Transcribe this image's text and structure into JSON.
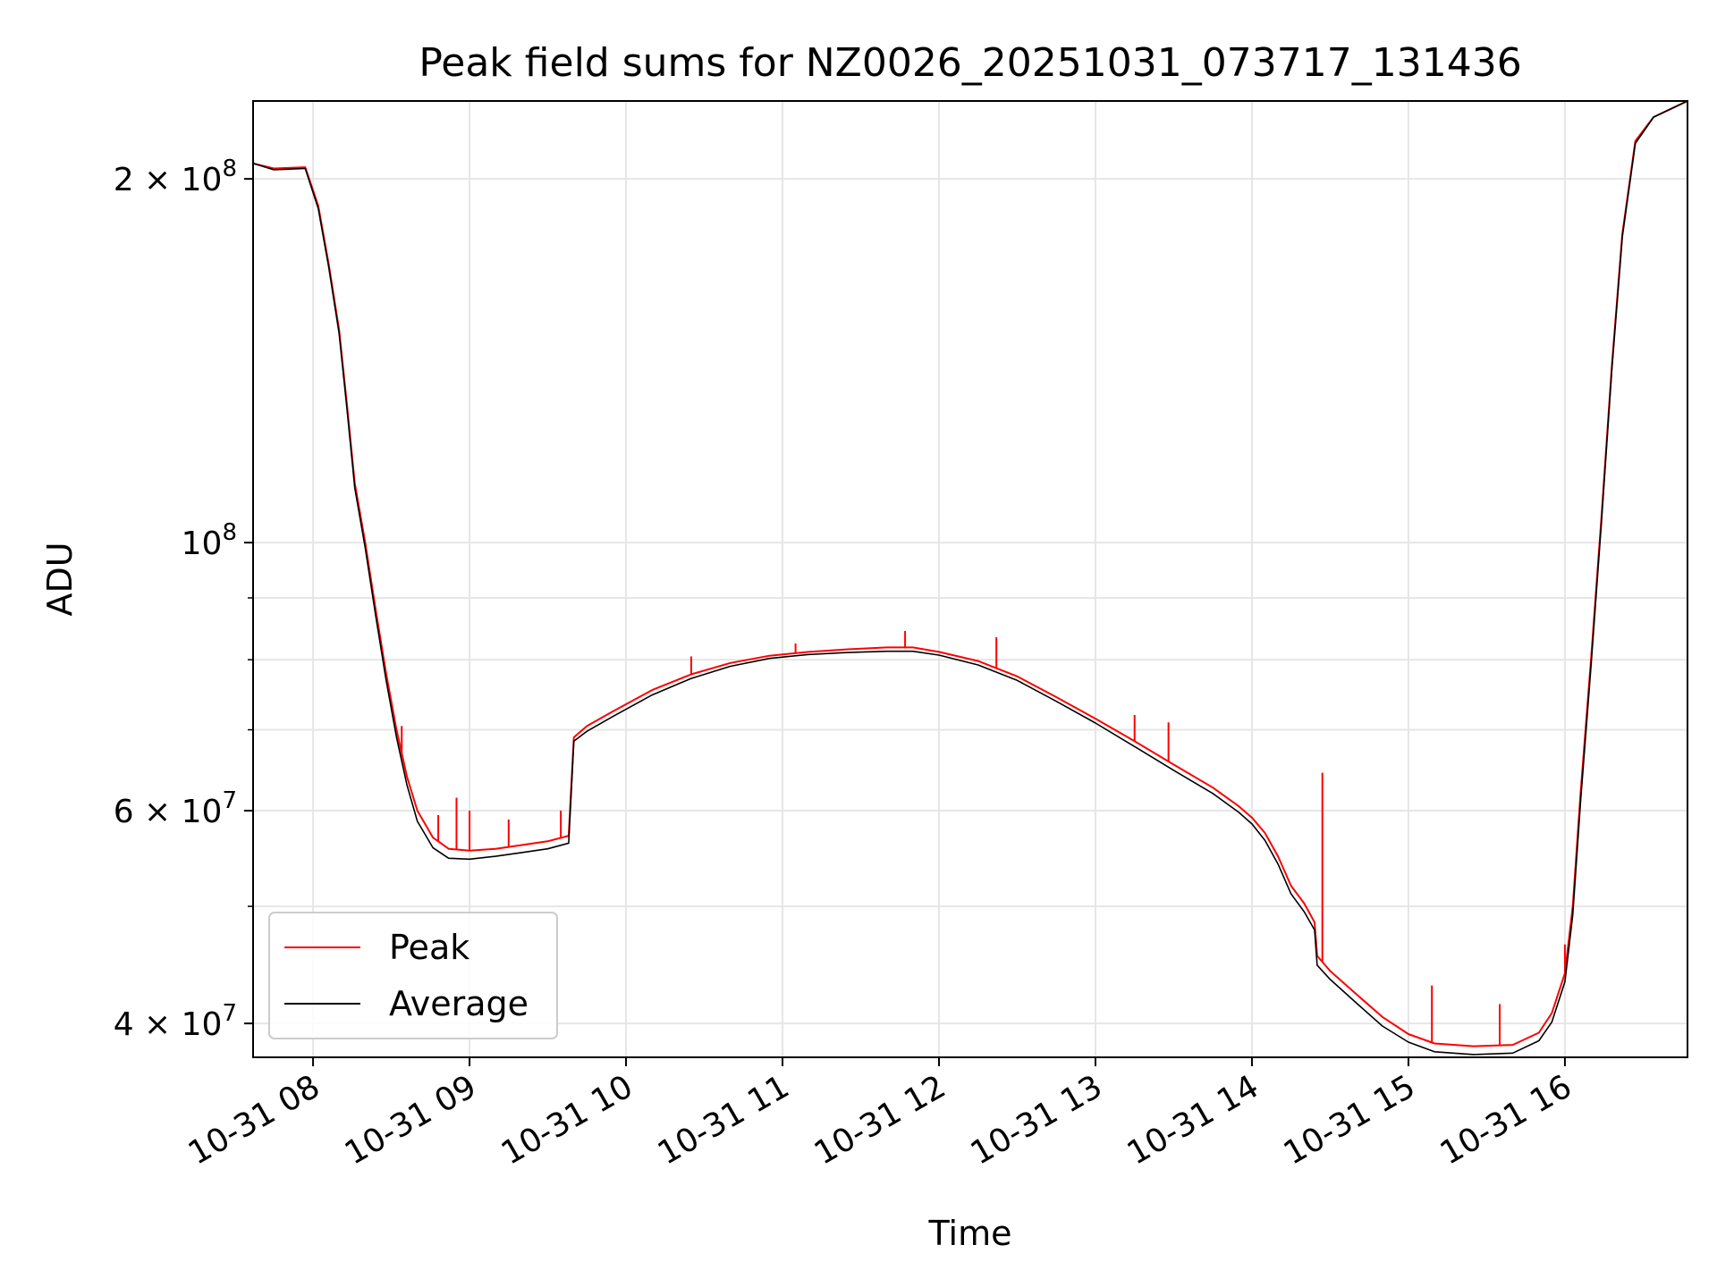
{
  "chart_data": {
    "type": "line",
    "title": "Peak field sums for NZ0026_20251031_073717_131436",
    "xlabel": "Time",
    "ylabel": "ADU",
    "yscale": "log",
    "grid": true,
    "legend_position": "lower-left",
    "xlim": [
      "2025-10-31 07:37",
      "2025-10-31 16:47"
    ],
    "ylim": [
      37500000,
      232000000
    ],
    "x_ticks": [
      {
        "value": "2025-10-31 08:00",
        "label": "10-31 08"
      },
      {
        "value": "2025-10-31 09:00",
        "label": "10-31 09"
      },
      {
        "value": "2025-10-31 10:00",
        "label": "10-31 10"
      },
      {
        "value": "2025-10-31 11:00",
        "label": "10-31 11"
      },
      {
        "value": "2025-10-31 12:00",
        "label": "10-31 12"
      },
      {
        "value": "2025-10-31 13:00",
        "label": "10-31 13"
      },
      {
        "value": "2025-10-31 14:00",
        "label": "10-31 14"
      },
      {
        "value": "2025-10-31 15:00",
        "label": "10-31 15"
      },
      {
        "value": "2025-10-31 16:00",
        "label": "10-31 16"
      }
    ],
    "y_ticks_major": [
      {
        "value": 40000000,
        "mantissa": "4",
        "exponent": "7"
      },
      {
        "value": 60000000,
        "mantissa": "6",
        "exponent": "7"
      },
      {
        "value": 100000000,
        "mantissa": "",
        "exponent": "8"
      },
      {
        "value": 200000000,
        "mantissa": "2",
        "exponent": "8"
      }
    ],
    "y_ticks_minor": [
      50000000,
      70000000,
      80000000,
      90000000
    ],
    "series": [
      {
        "name": "Peak",
        "color": "#ff0000",
        "points": [
          [
            "2025-10-31 07:37",
            206000000
          ],
          [
            "2025-10-31 07:45",
            204000000
          ],
          [
            "2025-10-31 07:57",
            204500000
          ],
          [
            "2025-10-31 08:02",
            190000000
          ],
          [
            "2025-10-31 08:06",
            170000000
          ],
          [
            "2025-10-31 08:10",
            150000000
          ],
          [
            "2025-10-31 08:13",
            130000000
          ],
          [
            "2025-10-31 08:16",
            112000000
          ],
          [
            "2025-10-31 08:20",
            100000000
          ],
          [
            "2025-10-31 08:24",
            88000000
          ],
          [
            "2025-10-31 08:28",
            78000000
          ],
          [
            "2025-10-31 08:32",
            70000000
          ],
          [
            "2025-10-31 08:36",
            64000000
          ],
          [
            "2025-10-31 08:40",
            60000000
          ],
          [
            "2025-10-31 08:46",
            57000000
          ],
          [
            "2025-10-31 08:52",
            55800000
          ],
          [
            "2025-10-31 09:00",
            55600000
          ],
          [
            "2025-10-31 09:10",
            55800000
          ],
          [
            "2025-10-31 09:20",
            56200000
          ],
          [
            "2025-10-31 09:30",
            56600000
          ],
          [
            "2025-10-31 09:38",
            57200000
          ],
          [
            "2025-10-31 09:40",
            69000000
          ],
          [
            "2025-10-31 09:45",
            70500000
          ],
          [
            "2025-10-31 09:55",
            72500000
          ],
          [
            "2025-10-31 10:10",
            75500000
          ],
          [
            "2025-10-31 10:25",
            77800000
          ],
          [
            "2025-10-31 10:40",
            79500000
          ],
          [
            "2025-10-31 10:55",
            80600000
          ],
          [
            "2025-10-31 11:10",
            81200000
          ],
          [
            "2025-10-31 11:25",
            81600000
          ],
          [
            "2025-10-31 11:40",
            81900000
          ],
          [
            "2025-10-31 11:50",
            81900000
          ],
          [
            "2025-10-31 12:00",
            81200000
          ],
          [
            "2025-10-31 12:15",
            79800000
          ],
          [
            "2025-10-31 12:30",
            77500000
          ],
          [
            "2025-10-31 12:45",
            74500000
          ],
          [
            "2025-10-31 13:00",
            71500000
          ],
          [
            "2025-10-31 13:15",
            68500000
          ],
          [
            "2025-10-31 13:30",
            65500000
          ],
          [
            "2025-10-31 13:45",
            62700000
          ],
          [
            "2025-10-31 13:55",
            60500000
          ],
          [
            "2025-10-31 14:00",
            59200000
          ],
          [
            "2025-10-31 14:05",
            57500000
          ],
          [
            "2025-10-31 14:10",
            55000000
          ],
          [
            "2025-10-31 14:15",
            52000000
          ],
          [
            "2025-10-31 14:20",
            50300000
          ],
          [
            "2025-10-31 14:24",
            48500000
          ],
          [
            "2025-10-31 14:25",
            45500000
          ],
          [
            "2025-10-31 14:30",
            44200000
          ],
          [
            "2025-10-31 14:40",
            42300000
          ],
          [
            "2025-10-31 14:50",
            40500000
          ],
          [
            "2025-10-31 15:00",
            39200000
          ],
          [
            "2025-10-31 15:10",
            38500000
          ],
          [
            "2025-10-31 15:25",
            38300000
          ],
          [
            "2025-10-31 15:40",
            38400000
          ],
          [
            "2025-10-31 15:50",
            39300000
          ],
          [
            "2025-10-31 15:55",
            40800000
          ],
          [
            "2025-10-31 16:00",
            44000000
          ],
          [
            "2025-10-31 16:03",
            50000000
          ],
          [
            "2025-10-31 16:06",
            62000000
          ],
          [
            "2025-10-31 16:10",
            80000000
          ],
          [
            "2025-10-31 16:14",
            105000000
          ],
          [
            "2025-10-31 16:18",
            140000000
          ],
          [
            "2025-10-31 16:22",
            180000000
          ],
          [
            "2025-10-31 16:27",
            215000000
          ],
          [
            "2025-10-31 16:34",
            225000000
          ],
          [
            "2025-10-31 16:47",
            232000000
          ]
        ],
        "spikes": [
          [
            "2025-10-31 08:34",
            70500000
          ],
          [
            "2025-10-31 08:48",
            59500000
          ],
          [
            "2025-10-31 08:55",
            61500000
          ],
          [
            "2025-10-31 09:00",
            60000000
          ],
          [
            "2025-10-31 09:15",
            59000000
          ],
          [
            "2025-10-31 09:35",
            60000000
          ],
          [
            "2025-10-31 10:25",
            80500000
          ],
          [
            "2025-10-31 11:05",
            82500000
          ],
          [
            "2025-10-31 11:47",
            84500000
          ],
          [
            "2025-10-31 12:22",
            83500000
          ],
          [
            "2025-10-31 13:15",
            72000000
          ],
          [
            "2025-10-31 13:28",
            71000000
          ],
          [
            "2025-10-31 14:27",
            64500000
          ],
          [
            "2025-10-31 15:09",
            43000000
          ],
          [
            "2025-10-31 15:35",
            41500000
          ],
          [
            "2025-10-31 16:00",
            46500000
          ]
        ]
      },
      {
        "name": "Average",
        "color": "#000000",
        "points": [
          [
            "2025-10-31 07:37",
            206000000
          ],
          [
            "2025-10-31 07:45",
            203500000
          ],
          [
            "2025-10-31 07:57",
            204000000
          ],
          [
            "2025-10-31 08:02",
            189000000
          ],
          [
            "2025-10-31 08:06",
            169000000
          ],
          [
            "2025-10-31 08:10",
            149000000
          ],
          [
            "2025-10-31 08:13",
            129000000
          ],
          [
            "2025-10-31 08:16",
            111000000
          ],
          [
            "2025-10-31 08:20",
            99000000
          ],
          [
            "2025-10-31 08:24",
            87000000
          ],
          [
            "2025-10-31 08:28",
            77000000
          ],
          [
            "2025-10-31 08:32",
            69000000
          ],
          [
            "2025-10-31 08:36",
            63000000
          ],
          [
            "2025-10-31 08:40",
            58800000
          ],
          [
            "2025-10-31 08:46",
            55900000
          ],
          [
            "2025-10-31 08:52",
            54800000
          ],
          [
            "2025-10-31 09:00",
            54700000
          ],
          [
            "2025-10-31 09:10",
            55000000
          ],
          [
            "2025-10-31 09:20",
            55400000
          ],
          [
            "2025-10-31 09:30",
            55800000
          ],
          [
            "2025-10-31 09:38",
            56400000
          ],
          [
            "2025-10-31 09:40",
            68500000
          ],
          [
            "2025-10-31 09:45",
            69800000
          ],
          [
            "2025-10-31 09:55",
            71800000
          ],
          [
            "2025-10-31 10:10",
            74800000
          ],
          [
            "2025-10-31 10:25",
            77200000
          ],
          [
            "2025-10-31 10:40",
            79000000
          ],
          [
            "2025-10-31 10:55",
            80200000
          ],
          [
            "2025-10-31 11:10",
            80800000
          ],
          [
            "2025-10-31 11:25",
            81100000
          ],
          [
            "2025-10-31 11:40",
            81300000
          ],
          [
            "2025-10-31 11:50",
            81300000
          ],
          [
            "2025-10-31 12:00",
            80700000
          ],
          [
            "2025-10-31 12:15",
            79200000
          ],
          [
            "2025-10-31 12:30",
            76900000
          ],
          [
            "2025-10-31 12:45",
            73900000
          ],
          [
            "2025-10-31 13:00",
            70900000
          ],
          [
            "2025-10-31 13:15",
            67800000
          ],
          [
            "2025-10-31 13:30",
            64800000
          ],
          [
            "2025-10-31 13:45",
            62000000
          ],
          [
            "2025-10-31 13:55",
            59800000
          ],
          [
            "2025-10-31 14:00",
            58500000
          ],
          [
            "2025-10-31 14:05",
            56700000
          ],
          [
            "2025-10-31 14:10",
            54200000
          ],
          [
            "2025-10-31 14:15",
            51200000
          ],
          [
            "2025-10-31 14:20",
            49500000
          ],
          [
            "2025-10-31 14:24",
            47800000
          ],
          [
            "2025-10-31 14:25",
            44700000
          ],
          [
            "2025-10-31 14:30",
            43500000
          ],
          [
            "2025-10-31 14:40",
            41600000
          ],
          [
            "2025-10-31 14:50",
            39800000
          ],
          [
            "2025-10-31 15:00",
            38600000
          ],
          [
            "2025-10-31 15:10",
            37900000
          ],
          [
            "2025-10-31 15:25",
            37700000
          ],
          [
            "2025-10-31 15:40",
            37800000
          ],
          [
            "2025-10-31 15:50",
            38700000
          ],
          [
            "2025-10-31 15:55",
            40100000
          ],
          [
            "2025-10-31 16:00",
            43300000
          ],
          [
            "2025-10-31 16:03",
            49200000
          ],
          [
            "2025-10-31 16:06",
            61000000
          ],
          [
            "2025-10-31 16:10",
            79000000
          ],
          [
            "2025-10-31 16:14",
            104000000
          ],
          [
            "2025-10-31 16:18",
            139000000
          ],
          [
            "2025-10-31 16:22",
            179000000
          ],
          [
            "2025-10-31 16:27",
            214000000
          ],
          [
            "2025-10-31 16:34",
            225000000
          ],
          [
            "2025-10-31 16:47",
            232000000
          ]
        ]
      }
    ]
  }
}
